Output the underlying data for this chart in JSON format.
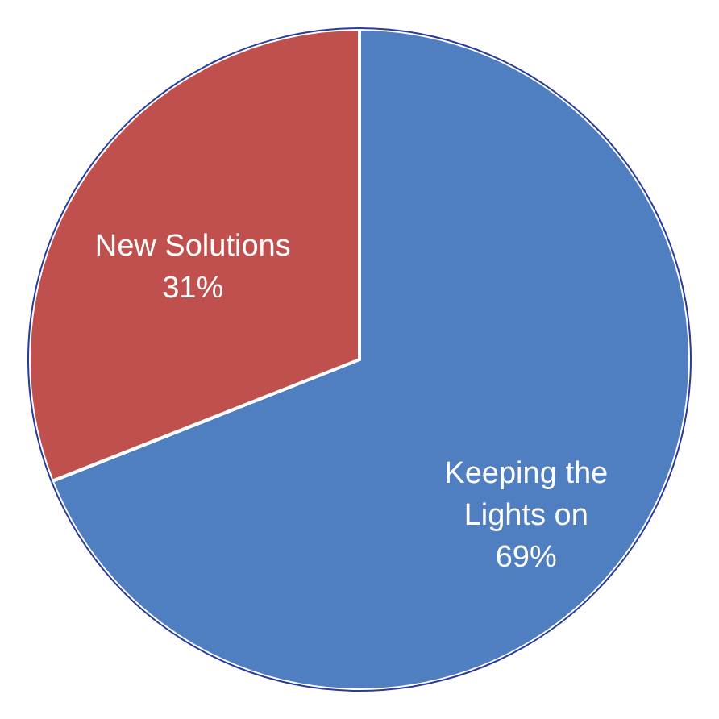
{
  "chart_data": {
    "type": "pie",
    "categories": [
      "Keeping the Lights on",
      "New Solutions"
    ],
    "values": [
      69,
      31
    ],
    "colors": [
      "#4f7fc0",
      "#c0504d"
    ],
    "value_labels": [
      "69%",
      "31%"
    ]
  }
}
